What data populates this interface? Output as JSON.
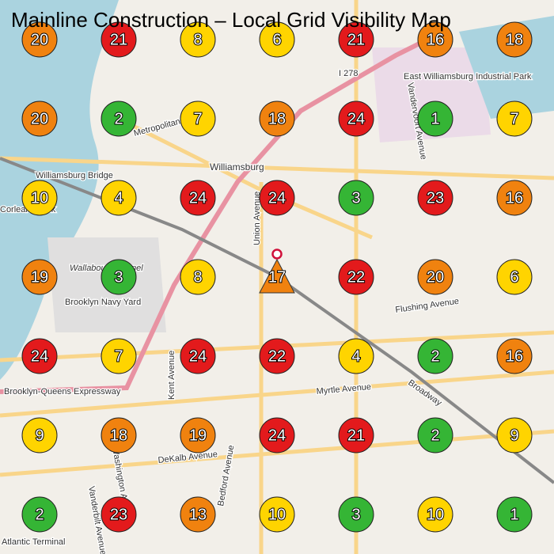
{
  "title": "Mainline Construction – Local Grid Visibility Map",
  "map_labels": [
    "Williamsburg",
    "Williamsburg Bridge",
    "Wallabout Channel",
    "Brooklyn Navy Yard",
    "East Williamsburg Industrial Park",
    "Metropolitan Avenue",
    "Union Avenue",
    "Flushing Avenue",
    "Myrtle Avenue",
    "Brooklyn-Queens Expressway",
    "DeKalb Avenue",
    "Broadway",
    "I 278",
    "Atlantic Terminal",
    "Kent Avenue",
    "Bedford Avenue",
    "Vanderbilt Avenue",
    "Washington Avenue",
    "Corlears Hook",
    "Vandervoort Avenue"
  ],
  "grid": [
    [
      {
        "value": 20,
        "color": "#f0820f",
        "shape": "circle"
      },
      {
        "value": 21,
        "color": "#e31a1c",
        "shape": "circle"
      },
      {
        "value": 8,
        "color": "#ffd400",
        "shape": "circle"
      },
      {
        "value": 6,
        "color": "#ffd400",
        "shape": "circle"
      },
      {
        "value": 21,
        "color": "#e31a1c",
        "shape": "circle"
      },
      {
        "value": 16,
        "color": "#f0820f",
        "shape": "circle"
      },
      {
        "value": 18,
        "color": "#f0820f",
        "shape": "circle"
      }
    ],
    [
      {
        "value": 20,
        "color": "#f0820f",
        "shape": "circle"
      },
      {
        "value": 2,
        "color": "#35b535",
        "shape": "circle"
      },
      {
        "value": 7,
        "color": "#ffd400",
        "shape": "circle"
      },
      {
        "value": 18,
        "color": "#f0820f",
        "shape": "circle"
      },
      {
        "value": 24,
        "color": "#e31a1c",
        "shape": "circle"
      },
      {
        "value": 1,
        "color": "#35b535",
        "shape": "circle"
      },
      {
        "value": 7,
        "color": "#ffd400",
        "shape": "circle"
      }
    ],
    [
      {
        "value": 10,
        "color": "#ffd400",
        "shape": "circle"
      },
      {
        "value": 4,
        "color": "#ffd400",
        "shape": "circle"
      },
      {
        "value": 24,
        "color": "#e31a1c",
        "shape": "circle"
      },
      {
        "value": 24,
        "color": "#e31a1c",
        "shape": "circle"
      },
      {
        "value": 3,
        "color": "#35b535",
        "shape": "circle"
      },
      {
        "value": 23,
        "color": "#e31a1c",
        "shape": "circle"
      },
      {
        "value": 16,
        "color": "#f0820f",
        "shape": "circle"
      }
    ],
    [
      {
        "value": 19,
        "color": "#f0820f",
        "shape": "circle"
      },
      {
        "value": 3,
        "color": "#35b535",
        "shape": "circle"
      },
      {
        "value": 8,
        "color": "#ffd400",
        "shape": "circle"
      },
      {
        "value": 17,
        "color": "#f0820f",
        "shape": "triangle"
      },
      {
        "value": 22,
        "color": "#e31a1c",
        "shape": "circle"
      },
      {
        "value": 20,
        "color": "#f0820f",
        "shape": "circle"
      },
      {
        "value": 6,
        "color": "#ffd400",
        "shape": "circle"
      }
    ],
    [
      {
        "value": 24,
        "color": "#e31a1c",
        "shape": "circle"
      },
      {
        "value": 7,
        "color": "#ffd400",
        "shape": "circle"
      },
      {
        "value": 24,
        "color": "#e31a1c",
        "shape": "circle"
      },
      {
        "value": 22,
        "color": "#e31a1c",
        "shape": "circle"
      },
      {
        "value": 4,
        "color": "#ffd400",
        "shape": "circle"
      },
      {
        "value": 2,
        "color": "#35b535",
        "shape": "circle"
      },
      {
        "value": 16,
        "color": "#f0820f",
        "shape": "circle"
      }
    ],
    [
      {
        "value": 9,
        "color": "#ffd400",
        "shape": "circle"
      },
      {
        "value": 18,
        "color": "#f0820f",
        "shape": "circle"
      },
      {
        "value": 19,
        "color": "#f0820f",
        "shape": "circle"
      },
      {
        "value": 24,
        "color": "#e31a1c",
        "shape": "circle"
      },
      {
        "value": 21,
        "color": "#e31a1c",
        "shape": "circle"
      },
      {
        "value": 2,
        "color": "#35b535",
        "shape": "circle"
      },
      {
        "value": 9,
        "color": "#ffd400",
        "shape": "circle"
      }
    ],
    [
      {
        "value": 2,
        "color": "#35b535",
        "shape": "circle"
      },
      {
        "value": 23,
        "color": "#e31a1c",
        "shape": "circle"
      },
      {
        "value": 13,
        "color": "#f0820f",
        "shape": "circle"
      },
      {
        "value": 10,
        "color": "#ffd400",
        "shape": "circle"
      },
      {
        "value": 3,
        "color": "#35b535",
        "shape": "circle"
      },
      {
        "value": 10,
        "color": "#ffd400",
        "shape": "circle"
      },
      {
        "value": 1,
        "color": "#35b535",
        "shape": "circle"
      }
    ]
  ]
}
